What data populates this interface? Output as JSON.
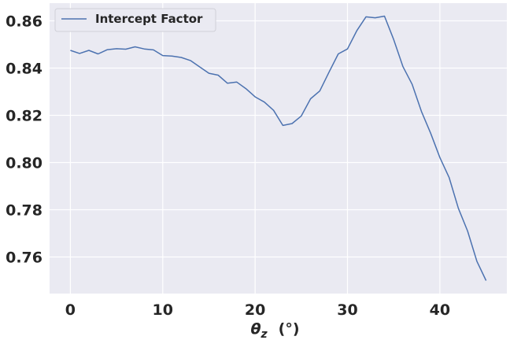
{
  "chart_data": {
    "type": "line",
    "title": "",
    "xlabel": "θz (°)",
    "xlabel_symbol": "θ",
    "xlabel_subscript": "z",
    "xlabel_unit": "(°)",
    "ylabel": "",
    "xlim": [
      -2.25,
      47.25
    ],
    "ylim": [
      0.7445,
      0.8675
    ],
    "xticks": [
      0,
      10,
      20,
      30,
      40
    ],
    "xtick_labels": [
      "0",
      "10",
      "20",
      "30",
      "40"
    ],
    "yticks": [
      0.76,
      0.78,
      0.8,
      0.82,
      0.84,
      0.86
    ],
    "ytick_labels": [
      "0.76",
      "0.78",
      "0.80",
      "0.82",
      "0.84",
      "0.86"
    ],
    "grid": true,
    "legend_position": "top-left",
    "series": [
      {
        "name": "Intercept Factor",
        "color": "#4c72b0",
        "x": [
          0,
          1,
          2,
          3,
          4,
          5,
          6,
          7,
          8,
          9,
          10,
          11,
          12,
          13,
          14,
          15,
          16,
          17,
          18,
          19,
          20,
          21,
          22,
          23,
          24,
          25,
          26,
          27,
          28,
          29,
          30,
          31,
          32,
          33,
          34,
          35,
          36,
          37,
          38,
          39,
          40,
          41,
          42,
          43,
          44,
          45
        ],
        "y": [
          0.8475,
          0.8462,
          0.8475,
          0.846,
          0.8478,
          0.8482,
          0.848,
          0.849,
          0.8481,
          0.8477,
          0.8453,
          0.8451,
          0.8445,
          0.8432,
          0.8405,
          0.8378,
          0.837,
          0.8336,
          0.8341,
          0.8313,
          0.8278,
          0.8256,
          0.8221,
          0.8157,
          0.8165,
          0.8197,
          0.827,
          0.8303,
          0.8383,
          0.846,
          0.8481,
          0.8558,
          0.8617,
          0.8613,
          0.862,
          0.8521,
          0.8406,
          0.8331,
          0.8217,
          0.8124,
          0.8021,
          0.7937,
          0.7806,
          0.771,
          0.7582,
          0.75
        ]
      }
    ]
  }
}
